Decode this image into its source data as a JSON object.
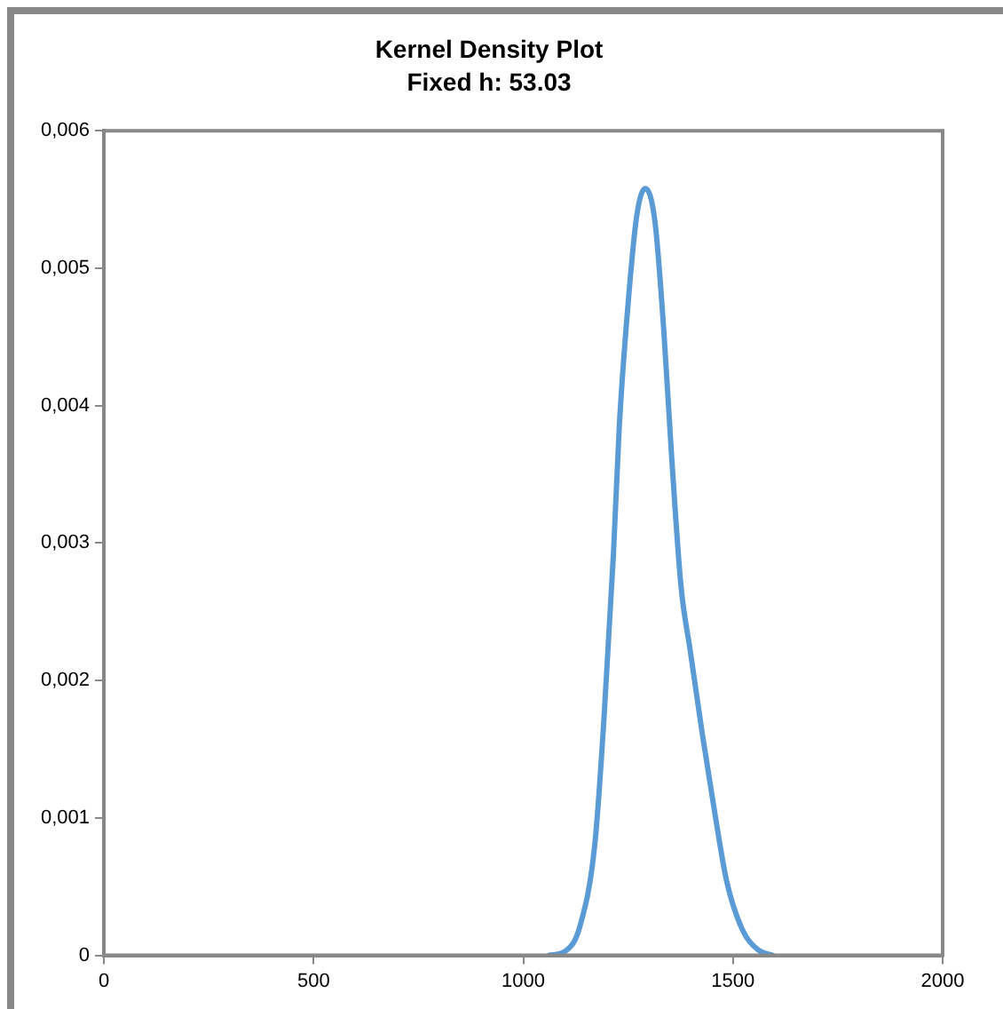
{
  "chart_data": {
    "type": "line",
    "title": "Kernel Density Plot",
    "subtitle": "Fixed h: 53.03",
    "series": [
      {
        "color": "#5b9bd5",
        "x": [
          1060,
          1100,
          1135,
          1171,
          1193,
          1215,
          1229,
          1251,
          1271,
          1291,
          1314,
          1335,
          1354,
          1376,
          1398,
          1427,
          1456,
          1485,
          1522,
          1560,
          1595
        ],
        "values": [
          0,
          3e-05,
          0.00021,
          0.00082,
          0.00175,
          0.00292,
          0.00385,
          0.00478,
          0.00539,
          0.00558,
          0.00534,
          0.00455,
          0.00362,
          0.00269,
          0.00222,
          0.00161,
          0.00105,
          0.00054,
          0.00019,
          4e-05,
          0
        ]
      }
    ],
    "xlim": [
      0,
      2000
    ],
    "xticks": [
      0,
      500,
      1000,
      1500,
      2000
    ],
    "ylim": [
      0,
      0.006
    ],
    "yticks": [
      0,
      {
        "value": 0.001,
        "label": "0,001"
      },
      {
        "value": 0.002,
        "label": "0,002"
      },
      {
        "value": 0.003,
        "label": "0,003"
      },
      {
        "value": 0.004,
        "label": "0,004"
      },
      {
        "value": 0.005,
        "label": "0,005"
      },
      {
        "value": 0.006,
        "label": "0,006"
      }
    ],
    "grid": false,
    "legend": false,
    "marker": "none",
    "line_style": "solid"
  }
}
